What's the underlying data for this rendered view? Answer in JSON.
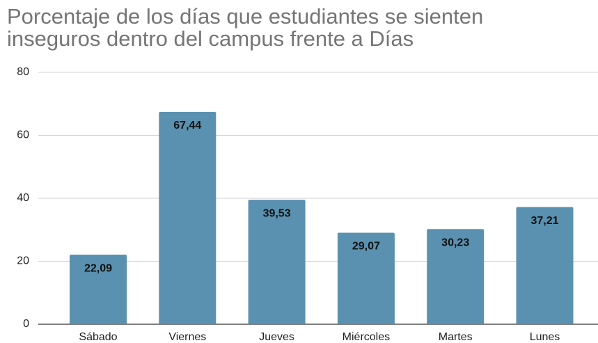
{
  "chart_data": {
    "type": "bar",
    "title": "Porcentaje de los días que estudiantes se sienten inseguros dentro del campus frente a Días",
    "categories": [
      "Sábado",
      "Viernes",
      "Jueves",
      "Miércoles",
      "Martes",
      "Lunes"
    ],
    "values": [
      22.09,
      67.44,
      39.53,
      29.07,
      30.23,
      37.21
    ],
    "value_labels": [
      "22,09",
      "67,44",
      "39,53",
      "29,07",
      "30,23",
      "37,21"
    ],
    "color": "#5a91b0",
    "ylim": [
      0,
      80
    ],
    "yticks": [
      0,
      20,
      40,
      60,
      80
    ],
    "grid": true
  }
}
